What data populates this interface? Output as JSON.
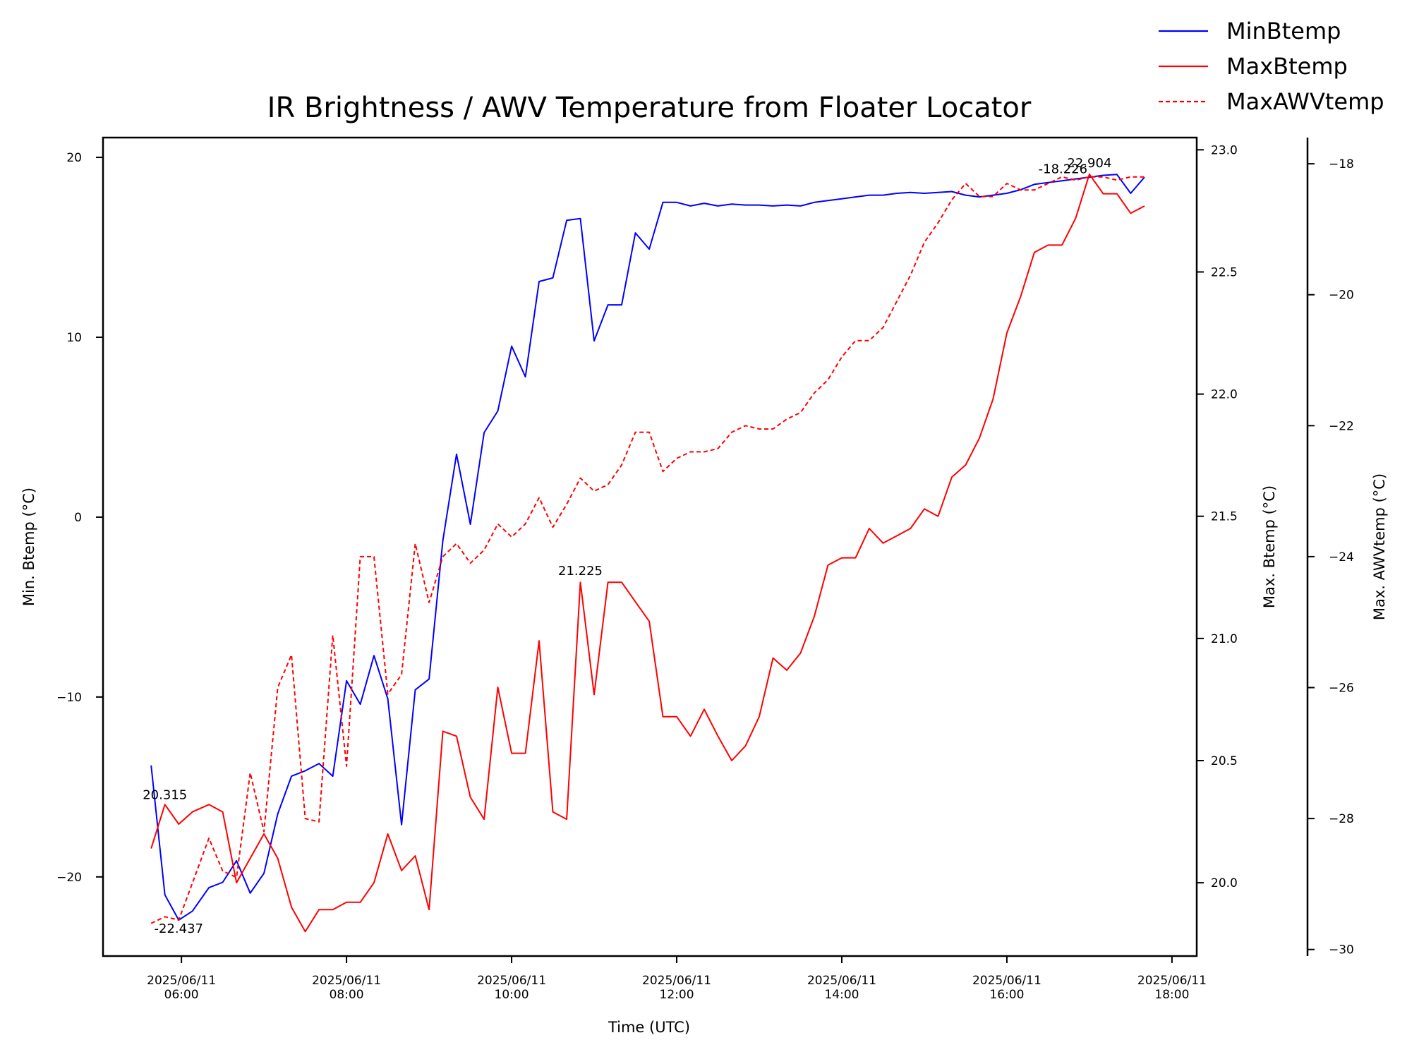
{
  "chart_data": {
    "type": "line",
    "title": "IR Brightness / AWV Temperature from Floater Locator",
    "xlabel": "Time (UTC)",
    "ylabel_left": "Min. Btemp (°C)",
    "ylabel_right": "Max. Btemp (°C)",
    "ylabel_right2": "Max. AWVtemp (°C)",
    "x_ticks": [
      {
        "line1": "2025/06/11",
        "line2": "06:00"
      },
      {
        "line1": "2025/06/11",
        "line2": "08:00"
      },
      {
        "line1": "2025/06/11",
        "line2": "10:00"
      },
      {
        "line1": "2025/06/11",
        "line2": "12:00"
      },
      {
        "line1": "2025/06/11",
        "line2": "14:00"
      },
      {
        "line1": "2025/06/11",
        "line2": "16:00"
      },
      {
        "line1": "2025/06/11",
        "line2": "18:00"
      }
    ],
    "x_tick_hours": [
      6,
      8,
      10,
      12,
      14,
      16,
      18
    ],
    "xlim_hours": [
      5.05,
      18.3
    ],
    "left_axis": {
      "ylim": [
        -24.4,
        21.1
      ],
      "ticks": [
        -20,
        -10,
        0,
        10,
        20
      ],
      "tick_labels": [
        "−20",
        "−10",
        "0",
        "10",
        "20"
      ]
    },
    "right_axis": {
      "ylim": [
        19.7,
        23.05
      ],
      "ticks": [
        20.0,
        20.5,
        21.0,
        21.5,
        22.0,
        22.5,
        23.0
      ],
      "tick_labels": [
        "20.0",
        "20.5",
        "21.0",
        "21.5",
        "22.0",
        "22.5",
        "23.0"
      ]
    },
    "right2_axis": {
      "ylim": [
        -30.1,
        -17.6
      ],
      "ticks": [
        -30,
        -28,
        -26,
        -24,
        -22,
        -20,
        -18
      ],
      "tick_labels": [
        "−30",
        "−28",
        "−26",
        "−24",
        "−22",
        "−20",
        "−18"
      ]
    },
    "legend_position": "top-right",
    "series": [
      {
        "name": "MinBtemp",
        "axis": "left",
        "color": "#0000ff",
        "style": "solid",
        "x": [
          5.633,
          5.8,
          5.967,
          6.133,
          6.333,
          6.5,
          6.667,
          6.833,
          7.0,
          7.167,
          7.333,
          7.5,
          7.667,
          7.833,
          8.0,
          8.167,
          8.333,
          8.5,
          8.667,
          8.833,
          9.0,
          9.167,
          9.333,
          9.5,
          9.667,
          9.833,
          10.0,
          10.167,
          10.333,
          10.5,
          10.667,
          10.833,
          11.0,
          11.167,
          11.333,
          11.5,
          11.667,
          11.833,
          12.0,
          12.167,
          12.333,
          12.5,
          12.667,
          12.833,
          13.0,
          13.167,
          13.333,
          13.5,
          13.667,
          13.833,
          14.0,
          14.167,
          14.333,
          14.5,
          14.667,
          14.833,
          15.0,
          15.167,
          15.333,
          15.5,
          15.667,
          15.833,
          16.0,
          16.167,
          16.333,
          16.5,
          16.667,
          16.833,
          17.0,
          17.167,
          17.333,
          17.5,
          17.667
        ],
        "y": [
          -13.8,
          -21.0,
          -22.4,
          -21.9,
          -20.6,
          -20.3,
          -19.1,
          -20.9,
          -19.8,
          -16.5,
          -14.4,
          -14.1,
          -13.7,
          -14.4,
          -9.1,
          -10.4,
          -7.7,
          -10.1,
          -17.1,
          -9.6,
          -9.0,
          -1.3,
          3.5,
          -0.4,
          4.7,
          5.9,
          9.5,
          7.8,
          13.1,
          13.3,
          16.5,
          16.6,
          9.8,
          11.8,
          11.8,
          15.8,
          14.9,
          17.5,
          17.5,
          17.3,
          17.45,
          17.3,
          17.4,
          17.35,
          17.35,
          17.3,
          17.35,
          17.3,
          17.5,
          17.6,
          17.7,
          17.8,
          17.9,
          17.9,
          18.0,
          18.05,
          18.0,
          18.05,
          18.1,
          17.9,
          17.8,
          17.9,
          18.0,
          18.2,
          18.5,
          18.6,
          18.7,
          18.8,
          18.9,
          19.0,
          19.05,
          18.0,
          18.9
        ]
      },
      {
        "name": "MaxBtemp",
        "axis": "right",
        "color": "#ff0000",
        "style": "solid",
        "x": [
          5.633,
          5.8,
          5.967,
          6.133,
          6.333,
          6.5,
          6.667,
          6.833,
          7.0,
          7.167,
          7.333,
          7.5,
          7.667,
          7.833,
          8.0,
          8.167,
          8.333,
          8.5,
          8.667,
          8.833,
          9.0,
          9.167,
          9.333,
          9.5,
          9.667,
          9.833,
          10.0,
          10.167,
          10.333,
          10.5,
          10.667,
          10.833,
          11.0,
          11.167,
          11.333,
          11.5,
          11.667,
          11.833,
          12.0,
          12.167,
          12.333,
          12.5,
          12.667,
          12.833,
          13.0,
          13.167,
          13.333,
          13.5,
          13.667,
          13.833,
          14.0,
          14.167,
          14.333,
          14.5,
          14.667,
          14.833,
          15.0,
          15.167,
          15.333,
          15.5,
          15.667,
          15.833,
          16.0,
          16.167,
          16.333,
          16.5,
          16.667,
          16.833,
          17.0,
          17.167,
          17.333,
          17.5,
          17.667
        ],
        "y": [
          20.14,
          20.32,
          20.24,
          20.29,
          20.32,
          20.29,
          20.0,
          20.1,
          20.2,
          20.1,
          19.9,
          19.8,
          19.89,
          19.89,
          19.92,
          19.92,
          20.0,
          20.2,
          20.05,
          20.11,
          19.89,
          20.62,
          20.6,
          20.35,
          20.26,
          20.8,
          20.53,
          20.53,
          20.99,
          20.29,
          20.26,
          21.23,
          20.77,
          21.23,
          21.23,
          21.15,
          21.07,
          20.68,
          20.68,
          20.6,
          20.71,
          20.6,
          20.5,
          20.56,
          20.68,
          20.92,
          20.87,
          20.94,
          21.09,
          21.3,
          21.33,
          21.33,
          21.45,
          21.39,
          21.42,
          21.45,
          21.53,
          21.5,
          21.66,
          21.71,
          21.82,
          21.98,
          22.25,
          22.4,
          22.58,
          22.61,
          22.61,
          22.72,
          22.9,
          22.82,
          22.82,
          22.74,
          22.77
        ]
      },
      {
        "name": "MaxAWVtemp",
        "axis": "right2",
        "color": "#ff0000",
        "style": "dashed",
        "x": [
          5.633,
          5.8,
          5.967,
          6.333,
          6.5,
          6.667,
          6.833,
          7.0,
          7.167,
          7.333,
          7.5,
          7.667,
          7.833,
          8.0,
          8.167,
          8.333,
          8.5,
          8.667,
          8.833,
          9.0,
          9.167,
          9.333,
          9.5,
          9.667,
          9.833,
          10.0,
          10.167,
          10.333,
          10.5,
          10.667,
          10.833,
          11.0,
          11.167,
          11.333,
          11.5,
          11.667,
          11.833,
          12.0,
          12.167,
          12.333,
          12.5,
          12.667,
          12.833,
          13.0,
          13.167,
          13.333,
          13.5,
          13.667,
          13.833,
          14.0,
          14.167,
          14.333,
          14.5,
          14.667,
          14.833,
          15.0,
          15.167,
          15.333,
          15.5,
          15.667,
          15.833,
          16.0,
          16.167,
          16.333,
          16.5,
          16.667,
          16.833,
          17.0,
          17.167,
          17.333,
          17.5,
          17.667
        ],
        "y": [
          -29.6,
          -29.5,
          -29.55,
          -28.3,
          -28.8,
          -28.9,
          -27.3,
          -28.2,
          -26.0,
          -25.5,
          -28.0,
          -28.05,
          -25.2,
          -27.2,
          -24.0,
          -24.0,
          -26.1,
          -25.8,
          -23.8,
          -24.7,
          -24.0,
          -23.8,
          -24.1,
          -23.9,
          -23.5,
          -23.7,
          -23.5,
          -23.1,
          -23.55,
          -23.2,
          -22.8,
          -23.0,
          -22.9,
          -22.6,
          -22.1,
          -22.1,
          -22.7,
          -22.5,
          -22.4,
          -22.4,
          -22.35,
          -22.1,
          -22.0,
          -22.05,
          -22.05,
          -21.9,
          -21.8,
          -21.5,
          -21.3,
          -20.95,
          -20.7,
          -20.7,
          -20.5,
          -20.1,
          -19.7,
          -19.2,
          -18.9,
          -18.55,
          -18.3,
          -18.5,
          -18.5,
          -18.3,
          -18.4,
          -18.4,
          -18.3,
          -18.2,
          -18.25,
          -18.2,
          -18.2,
          -18.25,
          -18.2,
          -18.2
        ]
      }
    ],
    "annotations": [
      {
        "text": "20.315",
        "series": "MaxBtemp",
        "at": "max-start"
      },
      {
        "text": "-22.437",
        "series": "MinBtemp",
        "at": "min"
      },
      {
        "text": "21.225",
        "series": "MaxBtemp",
        "at": "local-peak"
      },
      {
        "text": "-18.226",
        "series": "MaxAWVtemp",
        "at": "max"
      },
      {
        "text": "22.904",
        "series": "MaxBtemp",
        "at": "max"
      }
    ]
  }
}
